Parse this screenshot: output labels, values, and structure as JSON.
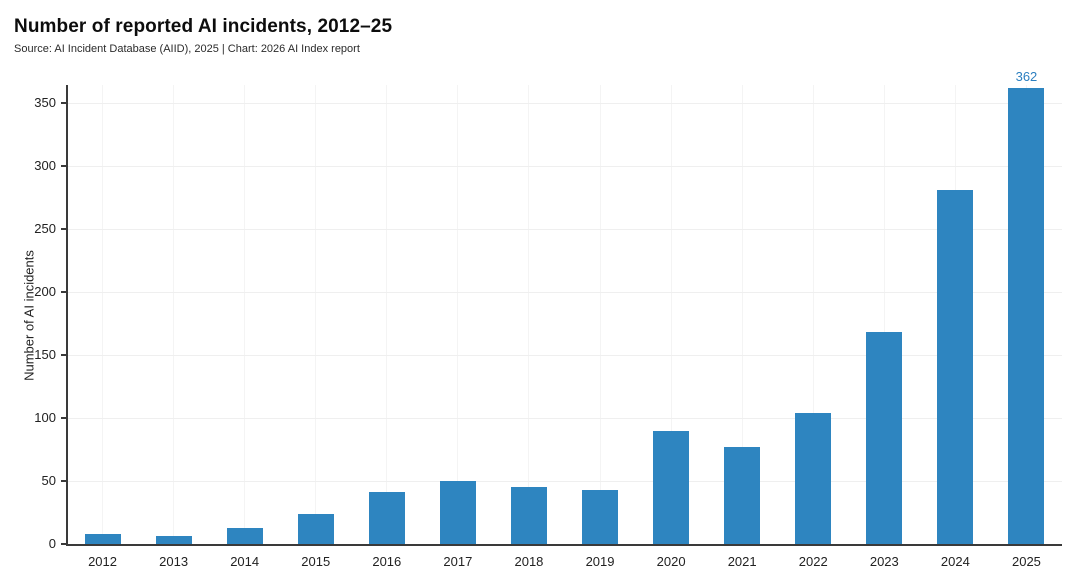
{
  "header": {
    "title": "Number of reported AI incidents, 2012–25",
    "source": "Source: AI Incident Database (AIID), 2025 | Chart: 2026 AI Index report"
  },
  "chart_data": {
    "type": "bar",
    "title": "Number of reported AI incidents, 2012–25",
    "subtitle": "Source: AI Incident Database (AIID), 2025 | Chart: 2026 AI Index report",
    "categories": [
      "2012",
      "2013",
      "2014",
      "2015",
      "2016",
      "2017",
      "2018",
      "2019",
      "2020",
      "2021",
      "2022",
      "2023",
      "2024",
      "2025"
    ],
    "values": [
      8,
      6,
      13,
      24,
      41,
      50,
      45,
      43,
      90,
      77,
      104,
      168,
      281,
      362
    ],
    "xlabel": "",
    "ylabel": "Number of AI incidents",
    "yticks": [
      0,
      50,
      100,
      150,
      200,
      250,
      300,
      350
    ],
    "ylim": [
      0,
      365
    ],
    "grid": "on",
    "legend": "none",
    "value_label": {
      "category": "2025",
      "text": "362"
    },
    "colors": {
      "bar": "#2e85c0",
      "value_label": "#2b7fc0",
      "axis": "#3a3a3a",
      "tick_text": "#222222",
      "title_text": "#0d0d0d",
      "grid_h": "#efefef",
      "grid_v": "#f4f4f4"
    }
  }
}
